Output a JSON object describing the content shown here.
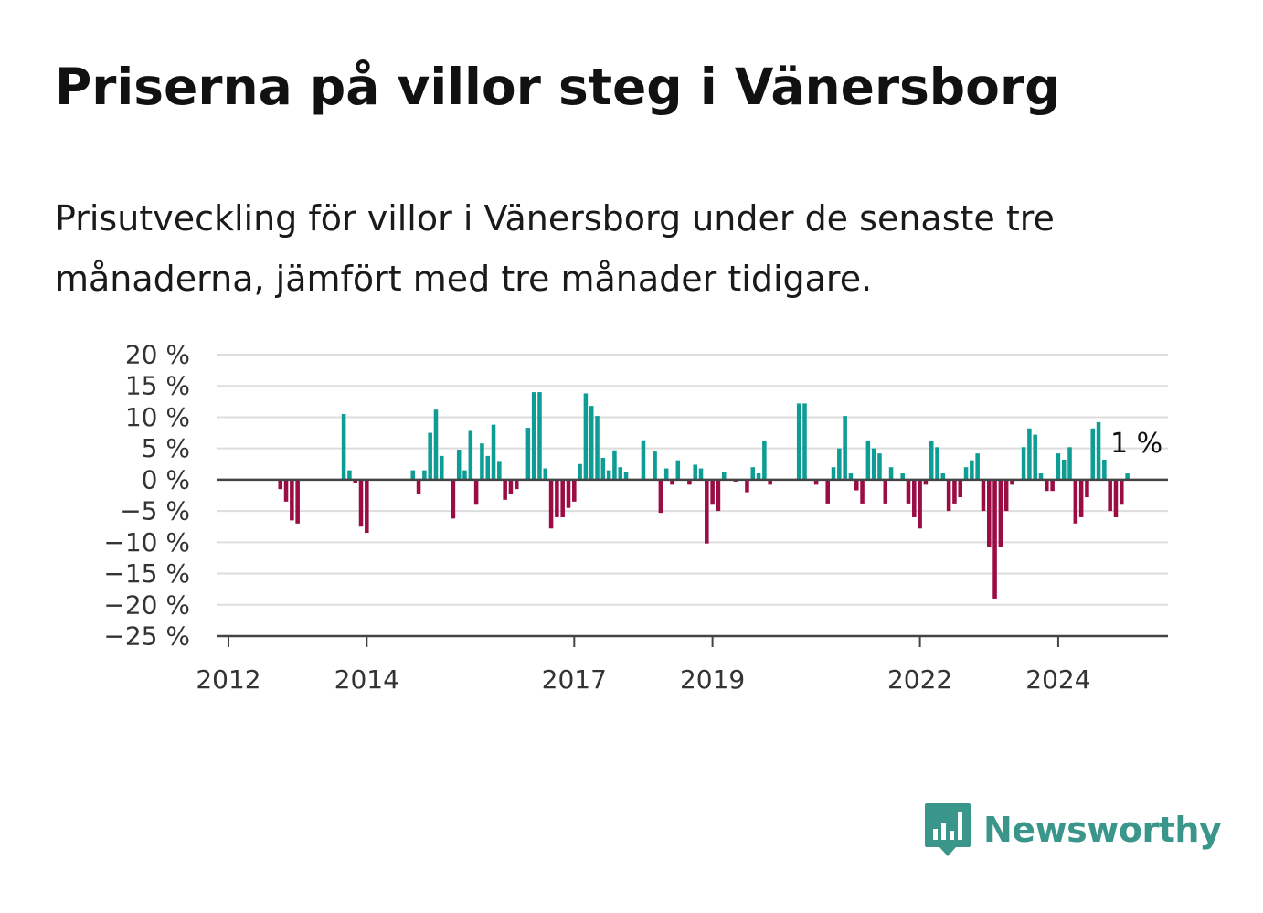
{
  "header": {
    "title": "Priserna på villor steg i Vänersborg",
    "subtitle": "Prisutveckling för villor i Vänersborg under de senaste tre månaderna, jämfört med tre månader tidigare."
  },
  "brand": {
    "name": "Newsworthy",
    "icon": "newsworthy-logo-icon",
    "color": "#3a968a"
  },
  "colors": {
    "positive": "#0e9d94",
    "negative": "#9b0b44",
    "grid": "#dddddd",
    "axis": "#444444"
  },
  "chart_data": {
    "type": "bar",
    "y_tick_labels": [
      "20 %",
      "15 %",
      "10 %",
      "5 %",
      "0 %",
      "−5 %",
      "−10 %",
      "−15 %",
      "−20 %",
      "−25 %"
    ],
    "y_ticks": [
      20,
      15,
      10,
      5,
      0,
      -5,
      -10,
      -15,
      -20,
      -25
    ],
    "ylim": [
      -25,
      20
    ],
    "xlim": [
      "2012-01",
      "2025-12"
    ],
    "x_tick_labels": [
      "2012",
      "2014",
      "2017",
      "2019",
      "2022",
      "2024"
    ],
    "x_ticks": [
      "2012-01",
      "2014-01",
      "2017-01",
      "2019-01",
      "2022-01",
      "2024-01"
    ],
    "grid": true,
    "annotation": {
      "text": "1 %",
      "x": "2024-11",
      "y": 1
    },
    "series": [
      {
        "points": [
          [
            "2012-10",
            -1.5
          ],
          [
            "2012-11",
            -3.5
          ],
          [
            "2012-12",
            -6.5
          ],
          [
            "2013-01",
            -7
          ],
          [
            "2013-09",
            10.5
          ],
          [
            "2013-10",
            1.5
          ],
          [
            "2013-11",
            -0.5
          ],
          [
            "2013-12",
            -7.5
          ],
          [
            "2014-01",
            -8.5
          ],
          [
            "2014-09",
            1.5
          ],
          [
            "2014-10",
            -2.3
          ],
          [
            "2014-11",
            1.5
          ],
          [
            "2014-12",
            7.5
          ],
          [
            "2015-01",
            11.2
          ],
          [
            "2015-02",
            3.8
          ],
          [
            "2015-03",
            0
          ],
          [
            "2015-04",
            -6.2
          ],
          [
            "2015-05",
            4.8
          ],
          [
            "2015-06",
            1.5
          ],
          [
            "2015-07",
            7.8
          ],
          [
            "2015-08",
            -4
          ],
          [
            "2015-09",
            5.8
          ],
          [
            "2015-10",
            3.8
          ],
          [
            "2015-11",
            8.8
          ],
          [
            "2015-12",
            3
          ],
          [
            "2016-01",
            -3.2
          ],
          [
            "2016-02",
            -2.3
          ],
          [
            "2016-03",
            -1.5
          ],
          [
            "2016-05",
            8.3
          ],
          [
            "2016-06",
            14
          ],
          [
            "2016-07",
            14
          ],
          [
            "2016-08",
            1.8
          ],
          [
            "2016-09",
            -7.8
          ],
          [
            "2016-10",
            -6
          ],
          [
            "2016-11",
            -6
          ],
          [
            "2016-12",
            -4.5
          ],
          [
            "2017-01",
            -3.5
          ],
          [
            "2017-02",
            2.5
          ],
          [
            "2017-03",
            13.8
          ],
          [
            "2017-04",
            11.8
          ],
          [
            "2017-05",
            10.2
          ],
          [
            "2017-06",
            3.5
          ],
          [
            "2017-07",
            1.5
          ],
          [
            "2017-08",
            4.7
          ],
          [
            "2017-09",
            2
          ],
          [
            "2017-10",
            1.3
          ],
          [
            "2018-01",
            6.3
          ],
          [
            "2018-03",
            4.5
          ],
          [
            "2018-04",
            -5.3
          ],
          [
            "2018-05",
            1.8
          ],
          [
            "2018-06",
            -0.8
          ],
          [
            "2018-07",
            3.1
          ],
          [
            "2018-09",
            -0.8
          ],
          [
            "2018-10",
            2.4
          ],
          [
            "2018-11",
            1.8
          ],
          [
            "2018-12",
            -10.2
          ],
          [
            "2019-01",
            -4
          ],
          [
            "2019-02",
            -5
          ],
          [
            "2019-03",
            1.3
          ],
          [
            "2019-05",
            -0.3
          ],
          [
            "2019-07",
            -2
          ],
          [
            "2019-08",
            2
          ],
          [
            "2019-09",
            1
          ],
          [
            "2019-10",
            6.2
          ],
          [
            "2019-11",
            -0.8
          ],
          [
            "2020-04",
            12.2
          ],
          [
            "2020-05",
            12.2
          ],
          [
            "2020-07",
            -0.8
          ],
          [
            "2020-09",
            -3.8
          ],
          [
            "2020-10",
            2
          ],
          [
            "2020-11",
            5
          ],
          [
            "2020-12",
            10.2
          ],
          [
            "2021-01",
            1
          ],
          [
            "2021-02",
            -1.7
          ],
          [
            "2021-03",
            -3.8
          ],
          [
            "2021-04",
            6.2
          ],
          [
            "2021-05",
            5
          ],
          [
            "2021-06",
            4.2
          ],
          [
            "2021-07",
            -3.8
          ],
          [
            "2021-08",
            2
          ],
          [
            "2021-10",
            1
          ],
          [
            "2021-11",
            -3.8
          ],
          [
            "2021-12",
            -6
          ],
          [
            "2022-01",
            -7.8
          ],
          [
            "2022-02",
            -0.8
          ],
          [
            "2022-03",
            6.2
          ],
          [
            "2022-04",
            5.2
          ],
          [
            "2022-05",
            1
          ],
          [
            "2022-06",
            -5
          ],
          [
            "2022-07",
            -3.8
          ],
          [
            "2022-08",
            -2.8
          ],
          [
            "2022-09",
            2
          ],
          [
            "2022-10",
            3.1
          ],
          [
            "2022-11",
            4.2
          ],
          [
            "2022-12",
            -5
          ],
          [
            "2023-01",
            -10.8
          ],
          [
            "2023-02",
            -19
          ],
          [
            "2023-03",
            -10.8
          ],
          [
            "2023-04",
            -5
          ],
          [
            "2023-05",
            -0.8
          ],
          [
            "2023-07",
            5.2
          ],
          [
            "2023-08",
            8.2
          ],
          [
            "2023-09",
            7.2
          ],
          [
            "2023-10",
            1
          ],
          [
            "2023-11",
            -1.8
          ],
          [
            "2023-12",
            -1.8
          ],
          [
            "2024-01",
            4.2
          ],
          [
            "2024-02",
            3.2
          ],
          [
            "2024-03",
            5.2
          ],
          [
            "2024-04",
            -7
          ],
          [
            "2024-05",
            -6
          ],
          [
            "2024-06",
            -2.8
          ],
          [
            "2024-07",
            8.2
          ],
          [
            "2024-08",
            9.2
          ],
          [
            "2024-09",
            3.2
          ],
          [
            "2024-10",
            -5
          ],
          [
            "2024-11",
            -6
          ],
          [
            "2024-12",
            -4
          ],
          [
            "2025-01",
            1
          ]
        ]
      }
    ]
  }
}
